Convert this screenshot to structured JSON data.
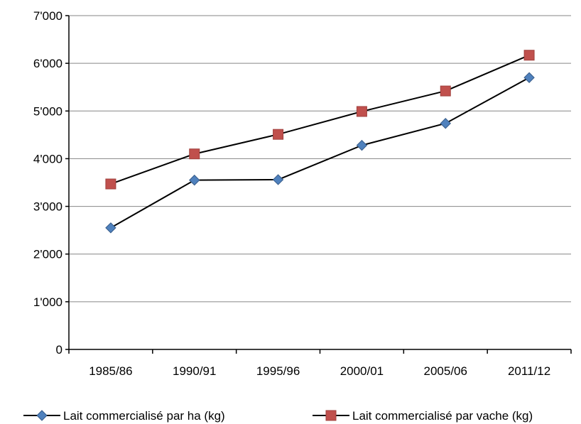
{
  "chart_data": {
    "type": "line",
    "categories": [
      "1985/86",
      "1990/91",
      "1995/96",
      "2000/01",
      "2005/06",
      "2011/12"
    ],
    "series": [
      {
        "name": "Lait commercialisé par ha (kg)",
        "values": [
          2550,
          3550,
          3560,
          4280,
          4740,
          5700
        ],
        "color": "#4F81BD",
        "marker": "diamond"
      },
      {
        "name": "Lait commercialisé par vache (kg)",
        "values": [
          3470,
          4100,
          4510,
          4990,
          5420,
          6170
        ],
        "color": "#C0504D",
        "marker": "square"
      }
    ],
    "yticks": [
      "0",
      "1'000",
      "2'000",
      "3'000",
      "4'000",
      "5'000",
      "6'000",
      "7'000"
    ],
    "ylim": [
      0,
      7000
    ],
    "grid": true,
    "legend": "bottom"
  }
}
